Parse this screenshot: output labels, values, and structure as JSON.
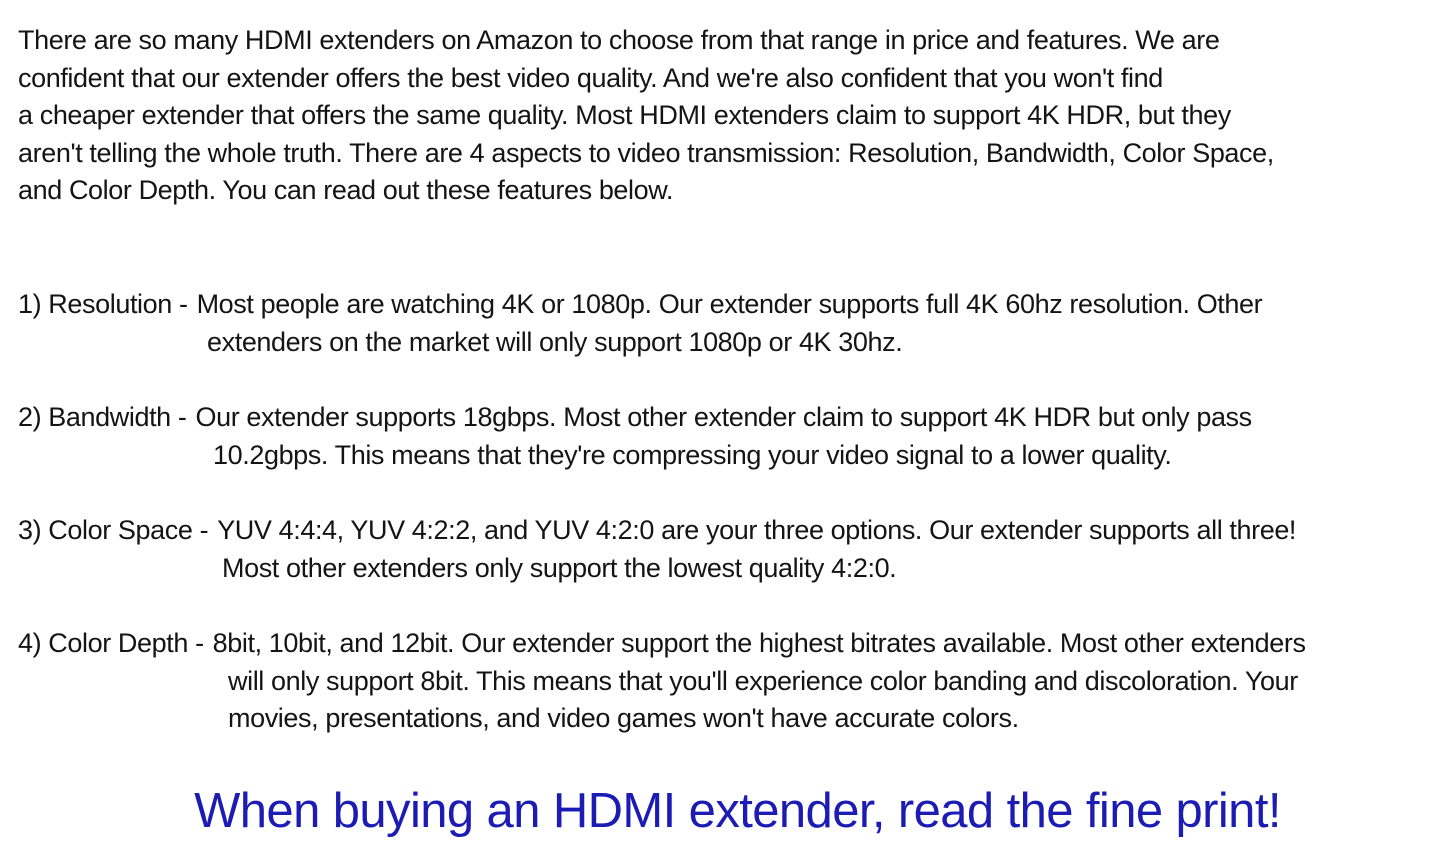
{
  "colors": {
    "background": "#ffffff",
    "body_text": "#141414",
    "headline_blue": "#1c1cb4"
  },
  "intro": {
    "lines": [
      "There are so many HDMI extenders on Amazon to choose from that range in price and features. We are",
      "confident that our extender offers the best video quality. And we're also confident that you won't find",
      "a cheaper extender that offers the same quality. Most HDMI extenders claim to support 4K HDR, but they",
      "aren't telling the whole truth. There are 4 aspects to video transmission: Resolution, Bandwidth, Color Space,",
      "and Color Depth. You can read out these features below."
    ]
  },
  "features": {
    "items": [
      {
        "label": "1) Resolution -",
        "lines": [
          "Most people are watching 4K or 1080p. Our extender supports full 4K 60hz resolution. Other",
          "extenders on the market will only support 1080p or 4K 30hz."
        ]
      },
      {
        "label": "2) Bandwidth -",
        "lines": [
          "Our extender supports 18gbps. Most other extender claim to support 4K HDR but only pass",
          "10.2gbps. This means that they're compressing your video signal to a lower quality."
        ]
      },
      {
        "label": "3) Color Space -",
        "lines": [
          "YUV 4:4:4, YUV 4:2:2, and YUV 4:2:0 are your three options. Our extender supports all three!",
          "Most other extenders only support the lowest quality 4:2:0."
        ]
      },
      {
        "label": "4) Color Depth -",
        "lines": [
          "8bit, 10bit, and 12bit. Our extender support the highest bitrates available. Most other extenders",
          "will only support 8bit. This means that you'll experience color banding and discoloration. Your",
          "movies, presentations, and video games won't have accurate colors."
        ]
      }
    ]
  },
  "headline": {
    "text": "When buying an HDMI extender, read the fine print!"
  }
}
